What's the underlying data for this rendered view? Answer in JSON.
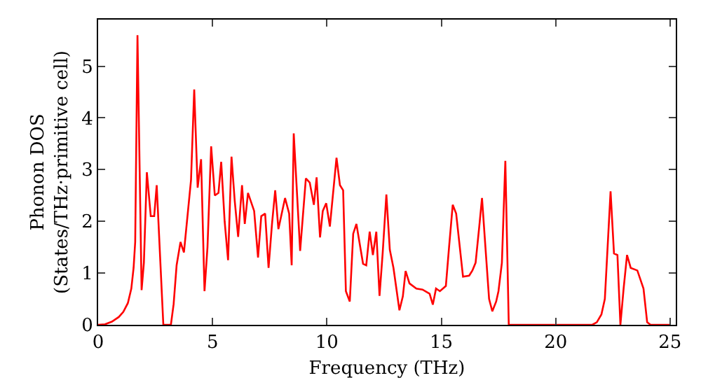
{
  "chart_data": {
    "type": "line",
    "xlabel": "Frequency (THz)",
    "ylabel": "Phonon DOS\n(States/THz·primitive cell)",
    "xlim": [
      0,
      25.25
    ],
    "ylim": [
      0,
      5.9
    ],
    "xticks": [
      0,
      5,
      10,
      15,
      20,
      25
    ],
    "yticks": [
      0,
      1,
      2,
      3,
      4,
      5
    ],
    "grid": false,
    "marker": "none",
    "line_style": "solid",
    "series": [
      {
        "color": "#ff0000",
        "x": [
          0,
          0.3,
          0.6,
          0.9,
          1.1,
          1.3,
          1.45,
          1.55,
          1.62,
          1.72,
          1.9,
          2.0,
          2.13,
          2.3,
          2.45,
          2.56,
          2.85,
          3.18,
          3.3,
          3.43,
          3.6,
          3.75,
          4.06,
          4.2,
          4.35,
          4.5,
          4.65,
          4.78,
          4.94,
          5.1,
          5.26,
          5.38,
          5.53,
          5.68,
          5.83,
          5.97,
          6.12,
          6.29,
          6.41,
          6.55,
          6.82,
          6.99,
          7.13,
          7.3,
          7.45,
          7.6,
          7.74,
          7.88,
          8.17,
          8.35,
          8.46,
          8.55,
          8.83,
          9.08,
          9.25,
          9.43,
          9.55,
          9.7,
          9.82,
          9.97,
          10.13,
          10.42,
          10.57,
          10.71,
          10.83,
          11.0,
          11.15,
          11.29,
          11.58,
          11.72,
          11.87,
          12.01,
          12.16,
          12.3,
          12.44,
          12.6,
          12.75,
          12.91,
          13.17,
          13.32,
          13.44,
          13.61,
          13.91,
          14.18,
          14.49,
          14.63,
          14.77,
          14.94,
          15.2,
          15.34,
          15.5,
          15.65,
          15.95,
          16.22,
          16.36,
          16.5,
          16.66,
          16.78,
          16.93,
          17.09,
          17.23,
          17.4,
          17.5,
          17.65,
          17.8,
          17.95,
          21.6,
          21.8,
          22.0,
          22.15,
          22.4,
          22.55,
          22.7,
          22.83,
          22.97,
          23.12,
          23.28,
          23.57,
          23.84,
          24.0,
          24.15,
          25.0
        ],
        "values": [
          0,
          0.01,
          0.06,
          0.15,
          0.25,
          0.42,
          0.7,
          1.1,
          1.6,
          5.6,
          0.67,
          1.2,
          2.95,
          2.1,
          2.1,
          2.7,
          0,
          0,
          0.4,
          1.15,
          1.6,
          1.4,
          2.8,
          4.55,
          2.65,
          3.2,
          0.65,
          1.5,
          3.45,
          2.5,
          2.55,
          3.15,
          2.0,
          1.25,
          3.25,
          2.4,
          1.7,
          2.7,
          1.95,
          2.55,
          2.2,
          1.3,
          2.1,
          2.15,
          1.1,
          1.95,
          2.6,
          1.85,
          2.45,
          2.15,
          1.15,
          3.7,
          1.43,
          2.83,
          2.75,
          2.32,
          2.85,
          1.69,
          2.2,
          2.35,
          1.9,
          3.23,
          2.7,
          2.6,
          0.65,
          0.45,
          1.76,
          1.95,
          1.18,
          1.15,
          1.8,
          1.35,
          1.8,
          0.56,
          1.4,
          2.52,
          1.45,
          1.1,
          0.28,
          0.55,
          1.04,
          0.8,
          0.7,
          0.68,
          0.6,
          0.39,
          0.7,
          0.65,
          0.75,
          1.5,
          2.32,
          2.15,
          0.93,
          0.95,
          1.05,
          1.2,
          1.9,
          2.45,
          1.5,
          0.5,
          0.26,
          0.45,
          0.65,
          1.2,
          3.17,
          0,
          0,
          0.05,
          0.2,
          0.5,
          2.58,
          1.38,
          1.35,
          0,
          0.7,
          1.35,
          1.1,
          1.05,
          0.7,
          0.05,
          0,
          0
        ]
      }
    ]
  }
}
